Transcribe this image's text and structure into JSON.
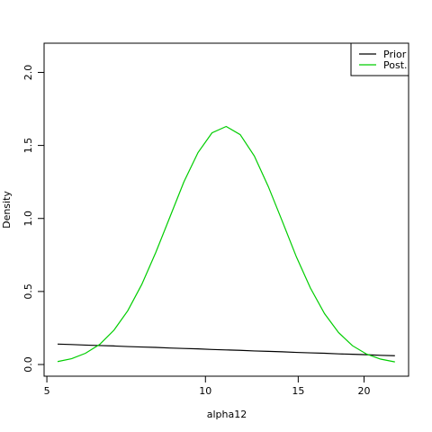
{
  "chart_data": {
    "type": "line",
    "x_label": "alpha12",
    "y_label": "Density",
    "x": [
      5.24,
      5.57,
      5.92,
      6.3,
      6.7,
      7.12,
      7.57,
      8.05,
      8.56,
      9.1,
      9.68,
      10.29,
      10.95,
      11.64,
      12.38,
      13.16,
      13.99,
      14.88,
      15.82,
      16.83,
      17.89,
      19.01,
      20.23,
      21.5,
      22.89
    ],
    "series": [
      {
        "name": "Prior",
        "color": "#000000",
        "values": [
          0.14,
          0.137,
          0.133,
          0.13,
          0.127,
          0.123,
          0.12,
          0.117,
          0.113,
          0.11,
          0.107,
          0.103,
          0.1,
          0.097,
          0.093,
          0.09,
          0.087,
          0.083,
          0.08,
          0.077,
          0.073,
          0.07,
          0.067,
          0.063,
          0.06
        ]
      },
      {
        "name": "Post.",
        "color": "#00cd00",
        "values": [
          0.02,
          0.04,
          0.077,
          0.138,
          0.234,
          0.368,
          0.548,
          0.768,
          1.009,
          1.25,
          1.451,
          1.586,
          1.63,
          1.574,
          1.428,
          1.219,
          0.981,
          0.737,
          0.524,
          0.348,
          0.219,
          0.129,
          0.071,
          0.037,
          0.018
        ]
      }
    ],
    "x_log": true,
    "xlim": [
      4.94,
      24.3
    ],
    "xticks": [
      5,
      10,
      15,
      20
    ],
    "ylim": [
      -0.08,
      2.2
    ],
    "yticks": [
      {
        "value": 0,
        "label": "0.0"
      },
      {
        "value": 0.5,
        "label": "0.5"
      },
      {
        "value": 1,
        "label": "1.0"
      },
      {
        "value": 1.5,
        "label": "1.5"
      },
      {
        "value": 2,
        "label": "2.0"
      }
    ],
    "legend": "top-right"
  }
}
